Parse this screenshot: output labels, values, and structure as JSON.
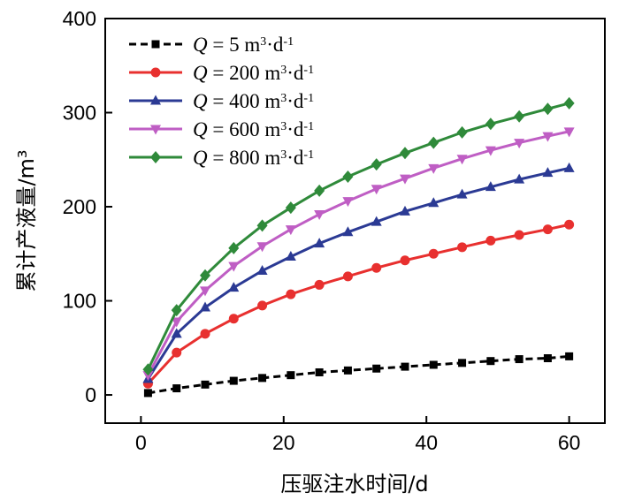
{
  "chart_data": {
    "type": "line",
    "xlabel": "压驱注水时间/d",
    "ylabel": "累计产液量/m³",
    "xlim": [
      -5,
      65
    ],
    "ylim": [
      -30,
      400
    ],
    "x_ticks": [
      0,
      20,
      40,
      60
    ],
    "y_ticks": [
      0,
      100,
      200,
      300,
      400
    ],
    "x_tick_labels": [
      "0",
      "20",
      "40",
      "60"
    ],
    "y_tick_labels": [
      "0",
      "100",
      "200",
      "300",
      "400"
    ],
    "legend_position": "top-left",
    "x": [
      1,
      5,
      9,
      13,
      17,
      21,
      25,
      29,
      33,
      37,
      41,
      45,
      49,
      53,
      57,
      60
    ],
    "series": [
      {
        "name": "Q = 5 m³·d⁻¹",
        "legend": {
          "var": "Q",
          "eq": " = 5 m",
          "exp1": "3",
          "mid": "·d",
          "exp2": "-1"
        },
        "color": "#000000",
        "marker": "square",
        "dashed": true,
        "values": [
          2,
          7,
          11,
          15,
          18,
          21,
          24,
          26,
          28,
          30,
          32,
          34,
          36,
          38,
          39,
          41
        ]
      },
      {
        "name": "Q = 200 m³·d⁻¹",
        "legend": {
          "var": "Q",
          "eq": " = 200 m",
          "exp1": "3",
          "mid": "·d",
          "exp2": "-1"
        },
        "color": "#e8302f",
        "marker": "circle",
        "dashed": false,
        "values": [
          12,
          45,
          65,
          81,
          95,
          107,
          117,
          126,
          135,
          143,
          150,
          157,
          164,
          170,
          176,
          181
        ]
      },
      {
        "name": "Q = 400 m³·d⁻¹",
        "legend": {
          "var": "Q",
          "eq": " = 400 m",
          "exp1": "3",
          "mid": "·d",
          "exp2": "-1"
        },
        "color": "#2b3a94",
        "marker": "triangle-up",
        "dashed": false,
        "values": [
          17,
          65,
          93,
          114,
          132,
          147,
          161,
          173,
          184,
          195,
          204,
          213,
          221,
          229,
          236,
          241
        ]
      },
      {
        "name": "Q = 600 m³·d⁻¹",
        "legend": {
          "var": "Q",
          "eq": " = 600 m",
          "exp1": "3",
          "mid": "·d",
          "exp2": "-1"
        },
        "color": "#bf5ec4",
        "marker": "triangle-down",
        "dashed": false,
        "values": [
          21,
          78,
          111,
          137,
          158,
          176,
          192,
          206,
          219,
          230,
          241,
          251,
          260,
          268,
          275,
          280
        ]
      },
      {
        "name": "Q = 800 m³·d⁻¹",
        "legend": {
          "var": "Q",
          "eq": " = 800 m",
          "exp1": "3",
          "mid": "·d",
          "exp2": "-1"
        },
        "color": "#2f8a3a",
        "marker": "diamond",
        "dashed": false,
        "values": [
          27,
          90,
          127,
          156,
          180,
          199,
          217,
          232,
          245,
          257,
          268,
          279,
          288,
          296,
          304,
          310
        ]
      }
    ]
  }
}
